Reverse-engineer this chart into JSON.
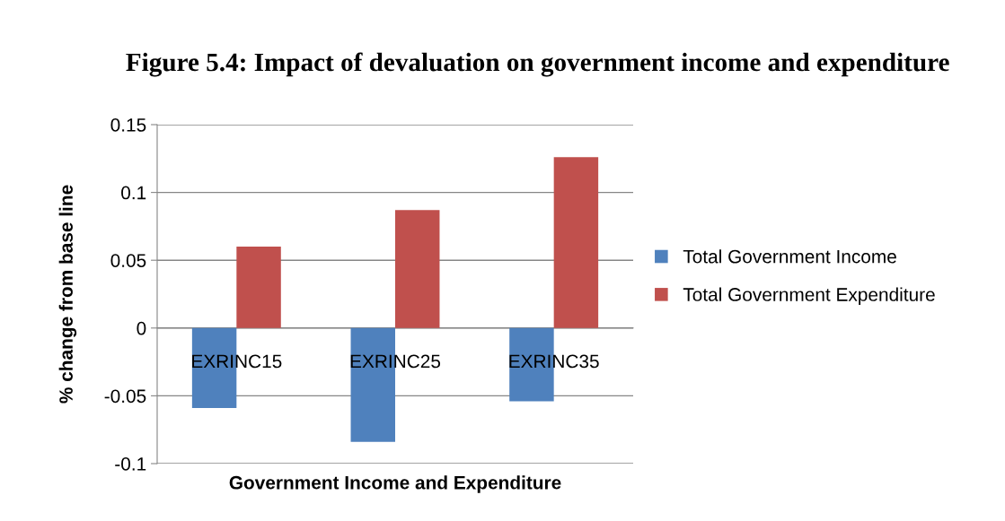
{
  "chart_data": {
    "type": "bar",
    "title": "Figure 5.4: Impact of devaluation on government income and expenditure",
    "xlabel": "Government Income and Expenditure",
    "ylabel": "% change from base line",
    "categories": [
      "EXRINC15",
      "EXRINC25",
      "EXRINC35"
    ],
    "series": [
      {
        "name": "Total Government Income",
        "color": "#4f81bd",
        "values": [
          -0.059,
          -0.084,
          -0.054
        ]
      },
      {
        "name": "Total Government Expenditure",
        "color": "#c0504d",
        "values": [
          0.06,
          0.087,
          0.126
        ]
      }
    ],
    "ylim": [
      -0.1,
      0.15
    ],
    "yticks": [
      -0.1,
      -0.05,
      0,
      0.05,
      0.1,
      0.15
    ],
    "grid": "y",
    "legend": "right"
  }
}
